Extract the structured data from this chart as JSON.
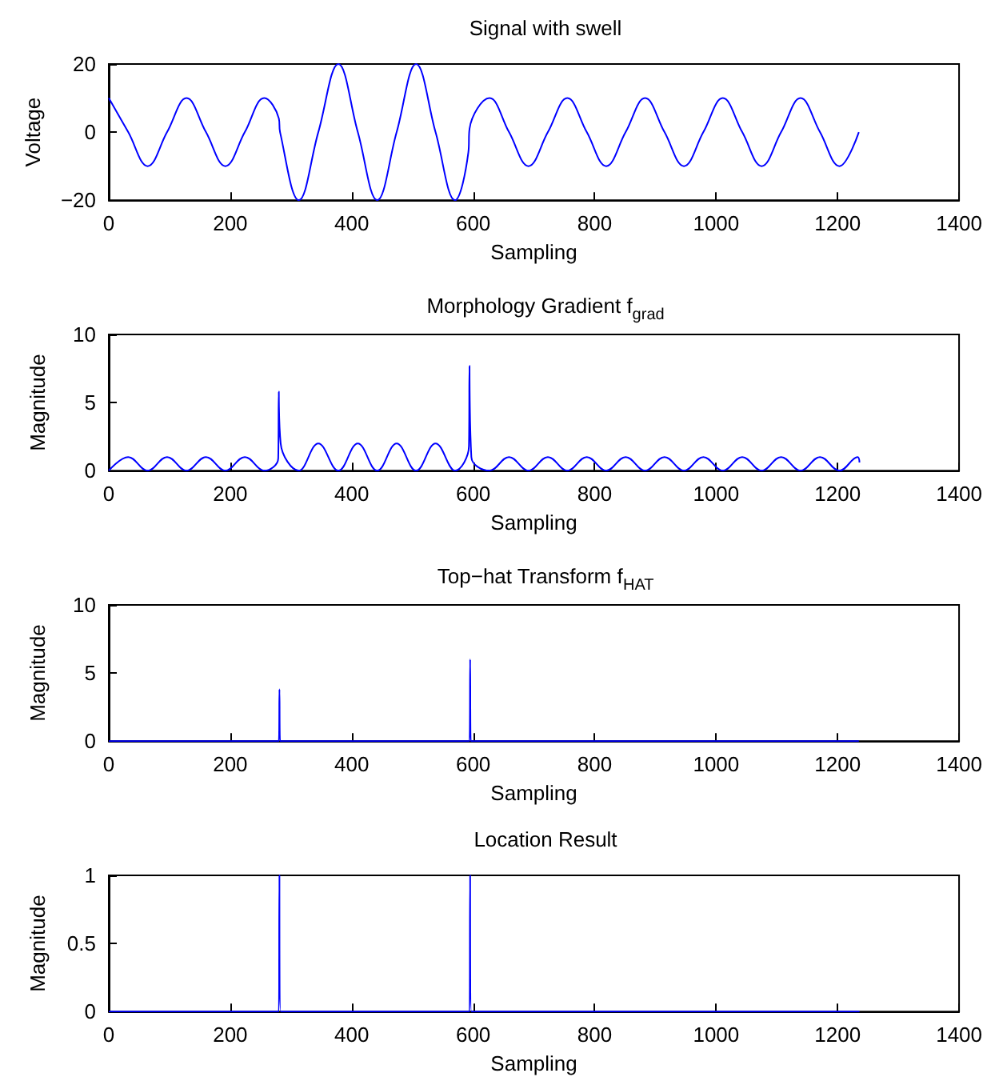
{
  "chart_data": [
    {
      "type": "line",
      "title": "Signal with swell",
      "xlabel": "Sampling",
      "ylabel": "Voltage",
      "xlim": [
        0,
        1400
      ],
      "xticks": [
        0,
        200,
        400,
        600,
        800,
        1000,
        1200,
        1400
      ],
      "ylim": [
        -20,
        20
      ],
      "yticks": [
        {
          "value": -20,
          "label": "−20"
        },
        0,
        20
      ],
      "series": [
        {
          "color": "#0000ff",
          "x": [
            0,
            32,
            64,
            96,
            128,
            160,
            192,
            224,
            256,
            280,
            282,
            313,
            345,
            378,
            410,
            442,
            474,
            506,
            538,
            570,
            592,
            594,
            627,
            659,
            691,
            723,
            755,
            787,
            819,
            851,
            883,
            915,
            947,
            979,
            1011,
            1043,
            1075,
            1107,
            1139,
            1171,
            1203,
            1235
          ],
          "values": [
            10,
            0,
            -10,
            0,
            10,
            0,
            -10,
            0,
            10,
            4,
            0,
            -20,
            0,
            20,
            0,
            -20,
            0,
            20,
            0,
            -20,
            -6,
            1,
            10,
            0,
            -10,
            0,
            10,
            0,
            -10,
            0,
            10,
            0,
            -10,
            0,
            10,
            0,
            -10,
            0,
            10,
            0,
            -10,
            0
          ]
        }
      ]
    },
    {
      "type": "line",
      "title": "Morphology Gradient f$_{grad}$",
      "xlabel": "Sampling",
      "ylabel": "Magnitude",
      "xlim": [
        0,
        1400
      ],
      "xticks": [
        0,
        200,
        400,
        600,
        800,
        1000,
        1200,
        1400
      ],
      "ylim": [
        0,
        10
      ],
      "yticks": [
        0,
        5,
        10
      ],
      "series": [
        {
          "color": "#0000ff",
          "x": [
            0,
            32,
            64,
            96,
            128,
            160,
            192,
            224,
            256,
            279,
            280,
            281,
            283,
            313,
            345,
            378,
            410,
            442,
            474,
            506,
            538,
            570,
            593,
            594,
            595,
            597,
            627,
            659,
            691,
            723,
            755,
            787,
            819,
            851,
            883,
            915,
            947,
            979,
            1011,
            1043,
            1075,
            1107,
            1139,
            1171,
            1203,
            1233,
            1236
          ],
          "values": [
            0,
            1,
            0,
            1,
            0,
            1,
            0,
            1,
            0,
            0.9,
            5.8,
            5.8,
            2,
            0,
            2,
            0,
            2,
            0,
            2,
            0,
            2,
            0,
            1.8,
            7.7,
            7.7,
            1,
            0,
            1,
            0,
            1,
            0,
            1,
            0,
            1,
            0,
            1,
            0,
            1,
            0,
            1,
            0,
            1,
            0,
            1,
            0,
            1,
            0.6
          ]
        }
      ]
    },
    {
      "type": "line",
      "title": "Top−hat Transform f$_{HAT}$",
      "xlabel": "Sampling",
      "ylabel": "Magnitude",
      "xlim": [
        0,
        1400
      ],
      "xticks": [
        0,
        200,
        400,
        600,
        800,
        1000,
        1200,
        1400
      ],
      "ylim": [
        0,
        10
      ],
      "yticks": [
        0,
        5,
        10
      ],
      "series": [
        {
          "color": "#0000ff",
          "x": [
            0,
            280,
            281,
            282,
            594,
            595,
            596,
            1235
          ],
          "values": [
            0,
            0,
            3.8,
            0,
            0,
            6,
            0,
            0
          ]
        }
      ]
    },
    {
      "type": "line",
      "title": "Location Result",
      "xlabel": "Sampling",
      "ylabel": "Magnitude",
      "xlim": [
        0,
        1400
      ],
      "xticks": [
        0,
        200,
        400,
        600,
        800,
        1000,
        1200,
        1400
      ],
      "ylim": [
        0,
        1
      ],
      "yticks": [
        0,
        0.5,
        1
      ],
      "series": [
        {
          "color": "#0000ff",
          "x": [
            0,
            280,
            281,
            282,
            283,
            594,
            595,
            596,
            597,
            1235
          ],
          "values": [
            0,
            0,
            1,
            1,
            0,
            0,
            1,
            1,
            0,
            0
          ]
        }
      ]
    }
  ]
}
